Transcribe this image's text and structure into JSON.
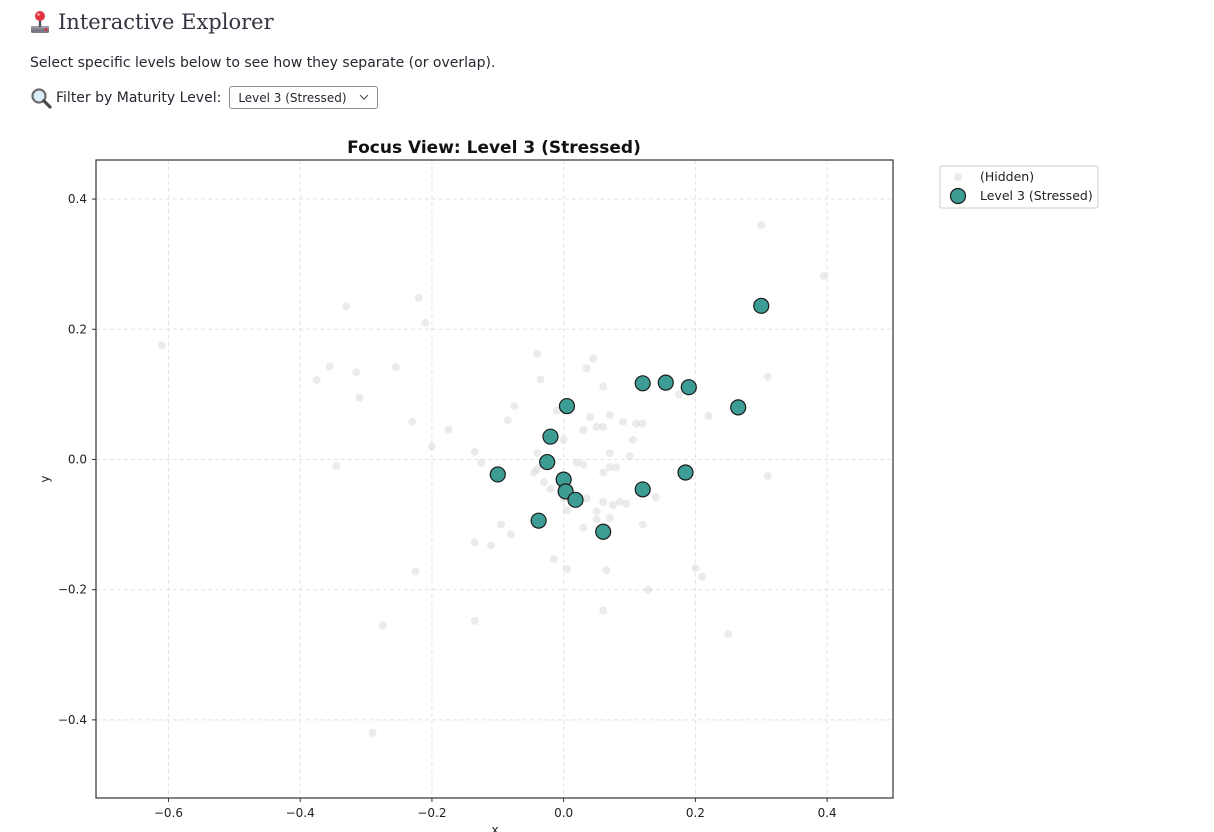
{
  "header": {
    "title": "Interactive Explorer",
    "title_icon": "joystick-icon",
    "description": "Select specific levels below to see how they separate (or overlap)."
  },
  "filter": {
    "icon": "magnifier-icon",
    "label": "Filter by Maturity Level:",
    "selected": "Level 3 (Stressed)"
  },
  "chart_data": {
    "type": "scatter",
    "title": "Focus View: Level 3 (Stressed)",
    "xlabel": "x",
    "ylabel": "y",
    "xlim": [
      -0.71,
      0.5
    ],
    "ylim": [
      -0.52,
      0.46
    ],
    "xticks": [
      -0.6,
      -0.4,
      -0.2,
      0.0,
      0.2,
      0.4
    ],
    "xtick_labels": [
      "−0.6",
      "−0.4",
      "−0.2",
      "0.0",
      "0.2",
      "0.4"
    ],
    "yticks": [
      0.4,
      0.2,
      0.0,
      -0.2,
      -0.4
    ],
    "ytick_labels": [
      "0.4",
      "0.2",
      "0.0",
      "−0.2",
      "−0.4"
    ],
    "grid": true,
    "legend_position": "outside-top-right",
    "series": [
      {
        "name": "(Hidden)",
        "color": "#d3d3d3",
        "points": [
          [
            -0.61,
            0.175
          ],
          [
            -0.33,
            0.235
          ],
          [
            -0.22,
            0.248
          ],
          [
            -0.21,
            0.21
          ],
          [
            -0.355,
            0.143
          ],
          [
            -0.375,
            0.122
          ],
          [
            -0.315,
            0.134
          ],
          [
            -0.31,
            0.095
          ],
          [
            -0.255,
            0.142
          ],
          [
            -0.23,
            0.058
          ],
          [
            -0.175,
            0.046
          ],
          [
            -0.2,
            0.02
          ],
          [
            -0.345,
            -0.01
          ],
          [
            -0.135,
            0.012
          ],
          [
            -0.125,
            -0.005
          ],
          [
            -0.075,
            0.082
          ],
          [
            -0.085,
            0.06
          ],
          [
            -0.04,
            0.162
          ],
          [
            -0.035,
            0.123
          ],
          [
            0.045,
            0.155
          ],
          [
            0.035,
            0.14
          ],
          [
            0.06,
            0.112
          ],
          [
            0.0,
            0.08
          ],
          [
            -0.01,
            0.075
          ],
          [
            0.04,
            0.065
          ],
          [
            0.07,
            0.068
          ],
          [
            0.05,
            0.05
          ],
          [
            0.03,
            0.045
          ],
          [
            0.06,
            0.05
          ],
          [
            0.09,
            0.058
          ],
          [
            0.11,
            0.055
          ],
          [
            0.0,
            0.03
          ],
          [
            0.105,
            0.03
          ],
          [
            0.07,
            0.01
          ],
          [
            0.1,
            0.005
          ],
          [
            0.02,
            -0.005
          ],
          [
            -0.04,
            0.01
          ],
          [
            -0.04,
            -0.015
          ],
          [
            -0.045,
            -0.02
          ],
          [
            -0.03,
            -0.035
          ],
          [
            -0.005,
            -0.025
          ],
          [
            0.03,
            -0.008
          ],
          [
            0.07,
            -0.012
          ],
          [
            0.08,
            -0.012
          ],
          [
            0.06,
            -0.02
          ],
          [
            -0.02,
            -0.045
          ],
          [
            0.0,
            -0.06
          ],
          [
            0.035,
            -0.06
          ],
          [
            0.06,
            -0.065
          ],
          [
            0.075,
            -0.07
          ],
          [
            0.085,
            -0.065
          ],
          [
            0.095,
            -0.068
          ],
          [
            0.14,
            -0.058
          ],
          [
            0.05,
            -0.08
          ],
          [
            0.07,
            -0.09
          ],
          [
            0.05,
            -0.092
          ],
          [
            0.005,
            -0.078
          ],
          [
            -0.08,
            -0.115
          ],
          [
            -0.095,
            -0.1
          ],
          [
            -0.11,
            -0.132
          ],
          [
            -0.135,
            -0.127
          ],
          [
            0.03,
            -0.105
          ],
          [
            0.12,
            -0.1
          ],
          [
            -0.015,
            -0.153
          ],
          [
            0.005,
            -0.168
          ],
          [
            0.065,
            -0.17
          ],
          [
            0.128,
            -0.2
          ],
          [
            0.06,
            -0.232
          ],
          [
            0.2,
            -0.167
          ],
          [
            0.21,
            -0.18
          ],
          [
            0.25,
            -0.268
          ],
          [
            0.175,
            0.1
          ],
          [
            0.22,
            0.067
          ],
          [
            0.31,
            0.127
          ],
          [
            0.31,
            -0.025
          ],
          [
            0.3,
            0.36
          ],
          [
            0.395,
            0.282
          ],
          [
            -0.225,
            -0.172
          ],
          [
            -0.275,
            -0.255
          ],
          [
            -0.135,
            -0.248
          ],
          [
            -0.29,
            -0.42
          ],
          [
            0.12,
            0.055
          ]
        ]
      },
      {
        "name": "Level 3 (Stressed)",
        "color": "#3d9c94",
        "points": [
          [
            0.3,
            0.236
          ],
          [
            0.12,
            0.117
          ],
          [
            0.155,
            0.118
          ],
          [
            0.19,
            0.111
          ],
          [
            0.265,
            0.08
          ],
          [
            0.005,
            0.082
          ],
          [
            -0.02,
            0.035
          ],
          [
            -0.025,
            -0.004
          ],
          [
            -0.1,
            -0.023
          ],
          [
            0.0,
            -0.031
          ],
          [
            0.003,
            -0.049
          ],
          [
            0.018,
            -0.062
          ],
          [
            0.12,
            -0.046
          ],
          [
            0.185,
            -0.02
          ],
          [
            -0.038,
            -0.094
          ],
          [
            0.06,
            -0.111
          ]
        ]
      }
    ]
  }
}
